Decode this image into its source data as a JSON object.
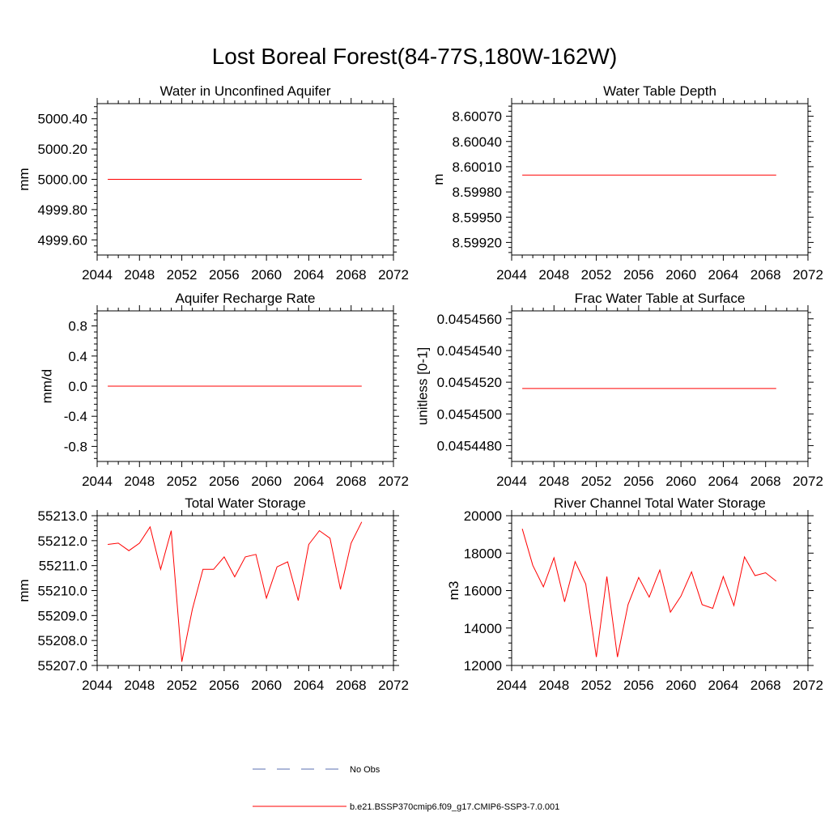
{
  "title": "Lost Boreal Forest(84-77S,180W-162W)",
  "colors": {
    "series": "#ff0000",
    "obs": "#5a6fb0"
  },
  "legend": {
    "obs_label": "No Obs",
    "series_label": "b.e21.BSSP370cmip6.f09_g17.CMIP6-SSP3-7.0.001"
  },
  "chart_data": [
    {
      "type": "line",
      "title": "Water in Unconfined Aquifer",
      "ylabel": "mm",
      "xlim": [
        2044,
        2072
      ],
      "xticks": [
        2044,
        2048,
        2052,
        2056,
        2060,
        2064,
        2068,
        2072
      ],
      "ylim": [
        4999.5,
        5000.5
      ],
      "yticks": [
        "5000.40",
        "5000.20",
        "5000.00",
        "4999.80",
        "4999.60"
      ],
      "ytick_values": [
        5000.4,
        5000.2,
        5000.0,
        4999.8,
        4999.6
      ],
      "x": [
        2045,
        2069
      ],
      "series": [
        {
          "values": [
            5000.0,
            5000.0
          ]
        }
      ]
    },
    {
      "type": "line",
      "title": "Water Table Depth",
      "ylabel": "m",
      "xlim": [
        2044,
        2072
      ],
      "xticks": [
        2044,
        2048,
        2052,
        2056,
        2060,
        2064,
        2068,
        2072
      ],
      "ylim": [
        8.59905,
        8.60085
      ],
      "yticks": [
        "8.60070",
        "8.60040",
        "8.60010",
        "8.59980",
        "8.59950",
        "8.59920"
      ],
      "ytick_values": [
        8.6007,
        8.6004,
        8.6001,
        8.5998,
        8.5995,
        8.5992
      ],
      "x": [
        2045,
        2069
      ],
      "series": [
        {
          "values": [
            8.6,
            8.6
          ]
        }
      ]
    },
    {
      "type": "line",
      "title": "Aquifer Recharge Rate",
      "ylabel": "mm/d",
      "xlim": [
        2044,
        2072
      ],
      "xticks": [
        2044,
        2048,
        2052,
        2056,
        2060,
        2064,
        2068,
        2072
      ],
      "ylim": [
        -1.0,
        1.0
      ],
      "yticks": [
        "0.8",
        "0.4",
        "0.0",
        "-0.4",
        "-0.8"
      ],
      "ytick_values": [
        0.8,
        0.4,
        0.0,
        -0.4,
        -0.8
      ],
      "x": [
        2045,
        2069
      ],
      "series": [
        {
          "values": [
            0.0,
            0.0
          ]
        }
      ]
    },
    {
      "type": "line",
      "title": "Frac Water Table at Surface",
      "ylabel": "unitless [0-1]",
      "xlim": [
        2044,
        2072
      ],
      "xticks": [
        2044,
        2048,
        2052,
        2056,
        2060,
        2064,
        2068,
        2072
      ],
      "ylim": [
        0.045447,
        0.0454565
      ],
      "yticks": [
        "0.0454560",
        "0.0454540",
        "0.0454520",
        "0.0454500",
        "0.0454480"
      ],
      "ytick_values": [
        0.045456,
        0.045454,
        0.045452,
        0.04545,
        0.045448
      ],
      "x": [
        2045,
        2069
      ],
      "series": [
        {
          "values": [
            0.0454516,
            0.0454516
          ]
        }
      ]
    },
    {
      "type": "line",
      "title": "Total Water Storage",
      "ylabel": "mm",
      "xlim": [
        2044,
        2072
      ],
      "xticks": [
        2044,
        2048,
        2052,
        2056,
        2060,
        2064,
        2068,
        2072
      ],
      "ylim": [
        55207.0,
        55213.0
      ],
      "yticks": [
        "55213.0",
        "55212.0",
        "55211.0",
        "55210.0",
        "55209.0",
        "55208.0",
        "55207.0"
      ],
      "ytick_values": [
        55213,
        55212,
        55211,
        55210,
        55209,
        55208,
        55207
      ],
      "x": [
        2045,
        2046,
        2047,
        2048,
        2049,
        2050,
        2051,
        2052,
        2053,
        2054,
        2055,
        2056,
        2057,
        2058,
        2059,
        2060,
        2061,
        2062,
        2063,
        2064,
        2065,
        2066,
        2067,
        2068,
        2069
      ],
      "series": [
        {
          "values": [
            55211.85,
            55211.9,
            55211.6,
            55211.9,
            55212.55,
            55210.85,
            55212.4,
            55207.15,
            55209.25,
            55210.85,
            55210.85,
            55211.35,
            55210.55,
            55211.35,
            55211.45,
            55209.7,
            55210.95,
            55211.15,
            55209.6,
            55211.85,
            55212.4,
            55212.1,
            55210.05,
            55211.9,
            55212.75
          ]
        }
      ]
    },
    {
      "type": "line",
      "title": "River Channel Total Water Storage",
      "ylabel": "m3",
      "xlim": [
        2044,
        2072
      ],
      "xticks": [
        2044,
        2048,
        2052,
        2056,
        2060,
        2064,
        2068,
        2072
      ],
      "ylim": [
        12000,
        20000
      ],
      "yticks": [
        "20000",
        "18000",
        "16000",
        "14000",
        "12000"
      ],
      "ytick_values": [
        20000,
        18000,
        16000,
        14000,
        12000
      ],
      "x": [
        2045,
        2046,
        2047,
        2048,
        2049,
        2050,
        2051,
        2052,
        2053,
        2054,
        2055,
        2056,
        2057,
        2058,
        2059,
        2060,
        2061,
        2062,
        2063,
        2064,
        2065,
        2066,
        2067,
        2068,
        2069
      ],
      "series": [
        {
          "values": [
            19300,
            17350,
            16200,
            17750,
            15400,
            17550,
            16350,
            12450,
            16750,
            12450,
            15250,
            16700,
            15650,
            17100,
            14850,
            15700,
            17000,
            15250,
            15050,
            16750,
            15200,
            17800,
            16800,
            16950,
            16500
          ]
        }
      ]
    }
  ]
}
